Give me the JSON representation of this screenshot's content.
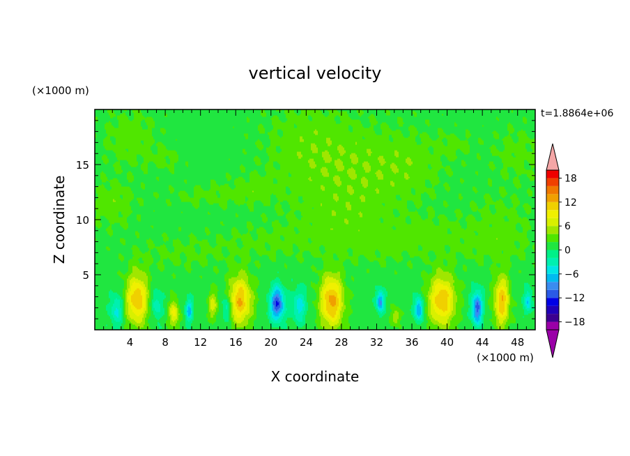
{
  "chart_data": {
    "type": "heatmap",
    "title": "vertical velocity",
    "xlabel": "X coordinate",
    "ylabel": "Z coordinate",
    "x_units": "(×1000 m)",
    "y_units": "(×1000 m)",
    "time_label": "t=1.8864e+06",
    "xlim": [
      0,
      50
    ],
    "ylim": [
      0,
      20
    ],
    "x_ticks": [
      4,
      8,
      12,
      16,
      20,
      24,
      28,
      32,
      36,
      40,
      44,
      48
    ],
    "y_ticks": [
      5,
      10,
      15
    ],
    "colorbar": {
      "range": [
        -20,
        20
      ],
      "step": 2,
      "tick_values": [
        18,
        12,
        6,
        0,
        -6,
        -12,
        -18
      ],
      "tick_labels": [
        "18",
        "12",
        "6",
        "0",
        "−6",
        "−12",
        "−18"
      ],
      "colors": [
        "#9a00a8",
        "#3c0090",
        "#2000b8",
        "#0000e6",
        "#2a5ae6",
        "#3a8cf0",
        "#00bbf0",
        "#00e6e6",
        "#00f0b0",
        "#00f088",
        "#20e640",
        "#50e600",
        "#a0e600",
        "#d8f000",
        "#f0f000",
        "#f0d000",
        "#f0a000",
        "#f07800",
        "#f04000",
        "#f00000"
      ],
      "over_color": "#f4a6a6",
      "under_color": "#9a00a8"
    },
    "background_value": 1,
    "upper_field": [
      {
        "x": 4,
        "z": 17.5,
        "rx": 3.0,
        "rz": 2.6,
        "amp": 2.2
      },
      {
        "x": 2,
        "z": 11.5,
        "rx": 2.6,
        "rz": 2.2,
        "amp": 2.2
      },
      {
        "x": 8,
        "z": 15.5,
        "rx": 2.0,
        "rz": 1.0,
        "amp": 1.5
      },
      {
        "x": 13,
        "z": 12.2,
        "rx": 5.0,
        "rz": 1.0,
        "amp": 1.6
      },
      {
        "x": 18,
        "z": 13.0,
        "rx": 3.0,
        "rz": 1.3,
        "amp": 1.5
      },
      {
        "x": 24,
        "z": 16.5,
        "rx": 5.0,
        "rz": 4.5,
        "amp": 2.2
      },
      {
        "x": 30,
        "z": 14.5,
        "rx": 5.0,
        "rz": 4.0,
        "amp": 2.2
      },
      {
        "x": 36,
        "z": 15.0,
        "rx": 4.0,
        "rz": 3.0,
        "amp": 2.0
      },
      {
        "x": 28,
        "z": 10.0,
        "rx": 6.0,
        "rz": 2.5,
        "amp": 1.6
      },
      {
        "x": 41,
        "z": 16.8,
        "rx": 2.0,
        "rz": 1.2,
        "amp": 1.5
      },
      {
        "x": 48,
        "z": 16.0,
        "rx": 3.0,
        "rz": 2.5,
        "amp": 1.8
      },
      {
        "x": 46,
        "z": 10.0,
        "rx": 4.0,
        "rz": 2.5,
        "amp": 1.6
      },
      {
        "x": 38,
        "z": 9.0,
        "rx": 4.0,
        "rz": 1.5,
        "amp": 1.5
      },
      {
        "x": 10,
        "z": 7.0,
        "rx": 6.0,
        "rz": 1.6,
        "amp": 1.4
      },
      {
        "x": 20,
        "z": 8.0,
        "rx": 6.0,
        "rz": 1.6,
        "amp": 1.4
      },
      {
        "x": 33,
        "z": 7.5,
        "rx": 6.0,
        "rz": 1.6,
        "amp": 1.4
      },
      {
        "x": 45,
        "z": 7.5,
        "rx": 5.0,
        "rz": 1.6,
        "amp": 1.4
      }
    ],
    "updrafts": [
      {
        "x": 4.8,
        "z": 2.8,
        "rx": 1.25,
        "rz": 2.3,
        "amp": 11
      },
      {
        "x": 9.0,
        "z": 1.5,
        "rx": 0.55,
        "rz": 1.2,
        "amp": 8
      },
      {
        "x": 13.4,
        "z": 2.3,
        "rx": 0.55,
        "rz": 1.2,
        "amp": 6
      },
      {
        "x": 16.5,
        "z": 2.7,
        "rx": 1.3,
        "rz": 2.2,
        "amp": 11
      },
      {
        "x": 26.9,
        "z": 2.6,
        "rx": 1.3,
        "rz": 2.4,
        "amp": 12
      },
      {
        "x": 34.2,
        "z": 1.2,
        "rx": 0.5,
        "rz": 0.8,
        "amp": 5
      },
      {
        "x": 39.4,
        "z": 2.7,
        "rx": 1.5,
        "rz": 2.3,
        "amp": 11
      },
      {
        "x": 46.2,
        "z": 2.6,
        "rx": 0.85,
        "rz": 2.2,
        "amp": 11
      }
    ],
    "downdrafts": [
      {
        "x": 2.5,
        "z": 1.8,
        "rx": 0.7,
        "rz": 1.4,
        "amp": -6
      },
      {
        "x": 7.0,
        "z": 2.3,
        "rx": 0.6,
        "rz": 1.3,
        "amp": -5
      },
      {
        "x": 10.7,
        "z": 1.8,
        "rx": 0.4,
        "rz": 1.0,
        "amp": -8
      },
      {
        "x": 15.0,
        "z": 2.0,
        "rx": 0.5,
        "rz": 1.2,
        "amp": -6
      },
      {
        "x": 20.7,
        "z": 2.4,
        "rx": 0.8,
        "rz": 1.5,
        "amp": -13
      },
      {
        "x": 23.2,
        "z": 2.2,
        "rx": 0.8,
        "rz": 1.5,
        "amp": -6
      },
      {
        "x": 32.4,
        "z": 2.6,
        "rx": 0.45,
        "rz": 1.0,
        "amp": -10
      },
      {
        "x": 36.8,
        "z": 1.9,
        "rx": 0.5,
        "rz": 1.1,
        "amp": -10
      },
      {
        "x": 43.4,
        "z": 2.0,
        "rx": 0.6,
        "rz": 1.5,
        "amp": -12
      },
      {
        "x": 49.2,
        "z": 2.6,
        "rx": 0.45,
        "rz": 1.0,
        "amp": -7
      }
    ]
  }
}
